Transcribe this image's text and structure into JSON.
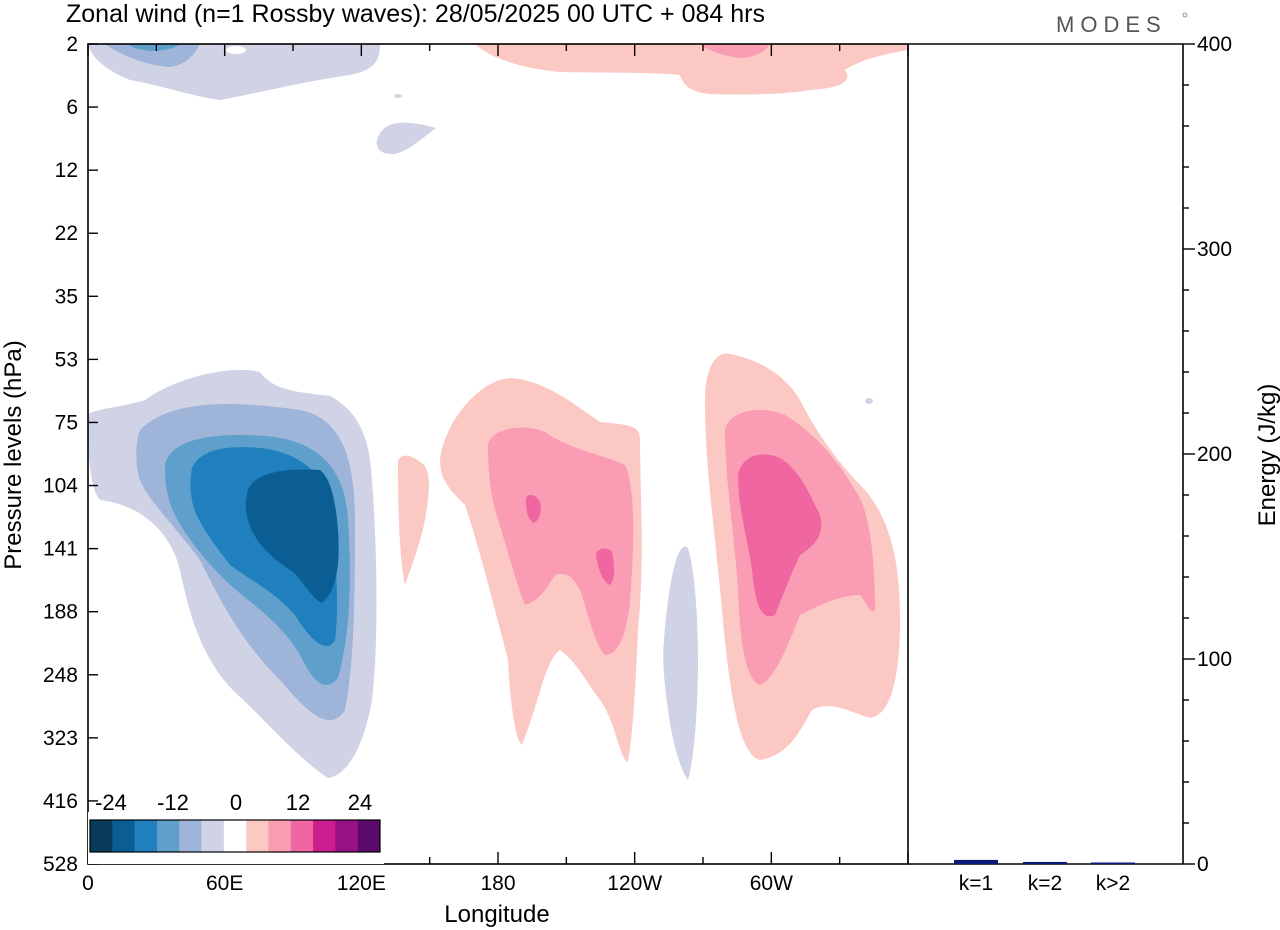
{
  "header": {
    "title": "Zonal wind (n=1 Rossby waves):  28/05/2025  00 UTC  + 084 hrs",
    "brand": "MODES"
  },
  "chart_data": [
    {
      "type": "heatmap",
      "title": "Zonal wind (n=1 Rossby waves):  28/05/2025  00 UTC  + 084 hrs",
      "xlabel": "Longitude",
      "ylabel": "Pressure levels (hPa)",
      "x_ticks": [
        "0",
        "60E",
        "120E",
        "180",
        "120W",
        "60W"
      ],
      "y_ticks": [
        "2",
        "6",
        "12",
        "22",
        "35",
        "53",
        "75",
        "104",
        "141",
        "188",
        "248",
        "323",
        "416",
        "528"
      ],
      "colorbar": {
        "tick_labels": [
          "-24",
          "-12",
          "0",
          "12",
          "24"
        ],
        "colors": [
          "#0a3a5c",
          "#0b5e94",
          "#1f80bd",
          "#5f9fcb",
          "#9eb4d8",
          "#d0d3e6",
          "#ffffff",
          "#fbc8c3",
          "#f99cb4",
          "#f066a0",
          "#cc1c8d",
          "#981287",
          "#5b0a6c"
        ]
      }
    },
    {
      "type": "bar",
      "ylabel": "Energy (J/kg)",
      "categories": [
        "k=1",
        "k=2",
        "k>2"
      ],
      "values": [
        2,
        1,
        0.5
      ],
      "ylim": [
        0,
        400
      ],
      "y_ticks": [
        "0",
        "100",
        "200",
        "300",
        "400"
      ],
      "bar_color": "#0b1a7a"
    }
  ]
}
